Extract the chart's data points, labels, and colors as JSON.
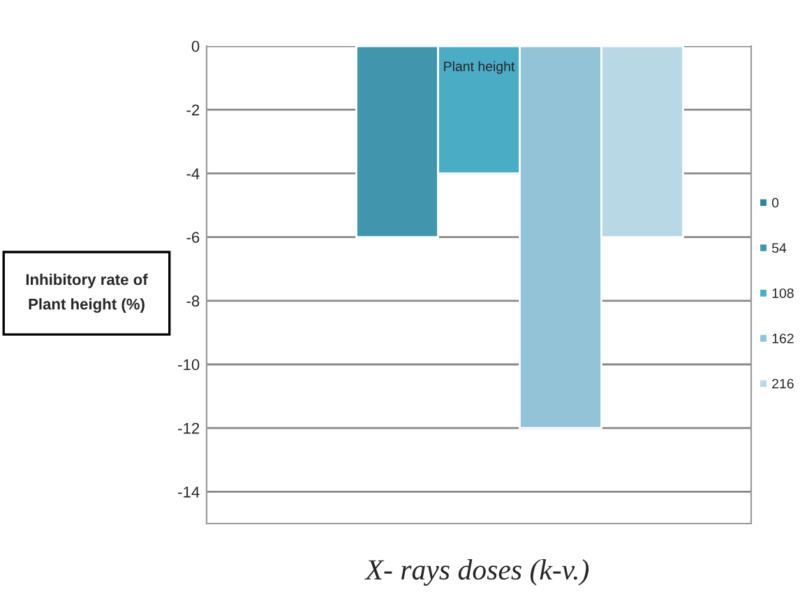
{
  "chart_data": {
    "type": "bar",
    "categories": [
      "Plant height"
    ],
    "series": [
      {
        "name": "0",
        "color": "#31849b",
        "values": [
          null
        ]
      },
      {
        "name": "54",
        "color": "#4195ad",
        "values": [
          -6
        ]
      },
      {
        "name": "108",
        "color": "#4bacc6",
        "values": [
          -4
        ]
      },
      {
        "name": "162",
        "color": "#93c3d6",
        "values": [
          -12
        ]
      },
      {
        "name": "216",
        "color": "#b7d8e4",
        "values": [
          -6
        ]
      }
    ],
    "ylabel": "Inhibitory rate of Plant height (%)",
    "xlabel": "X- rays doses (k-v.)",
    "ylim": [
      -15,
      0
    ],
    "yticks": [
      0,
      -2,
      -4,
      -6,
      -8,
      -10,
      -12,
      -14
    ],
    "grid": "y",
    "legend": "right"
  }
}
